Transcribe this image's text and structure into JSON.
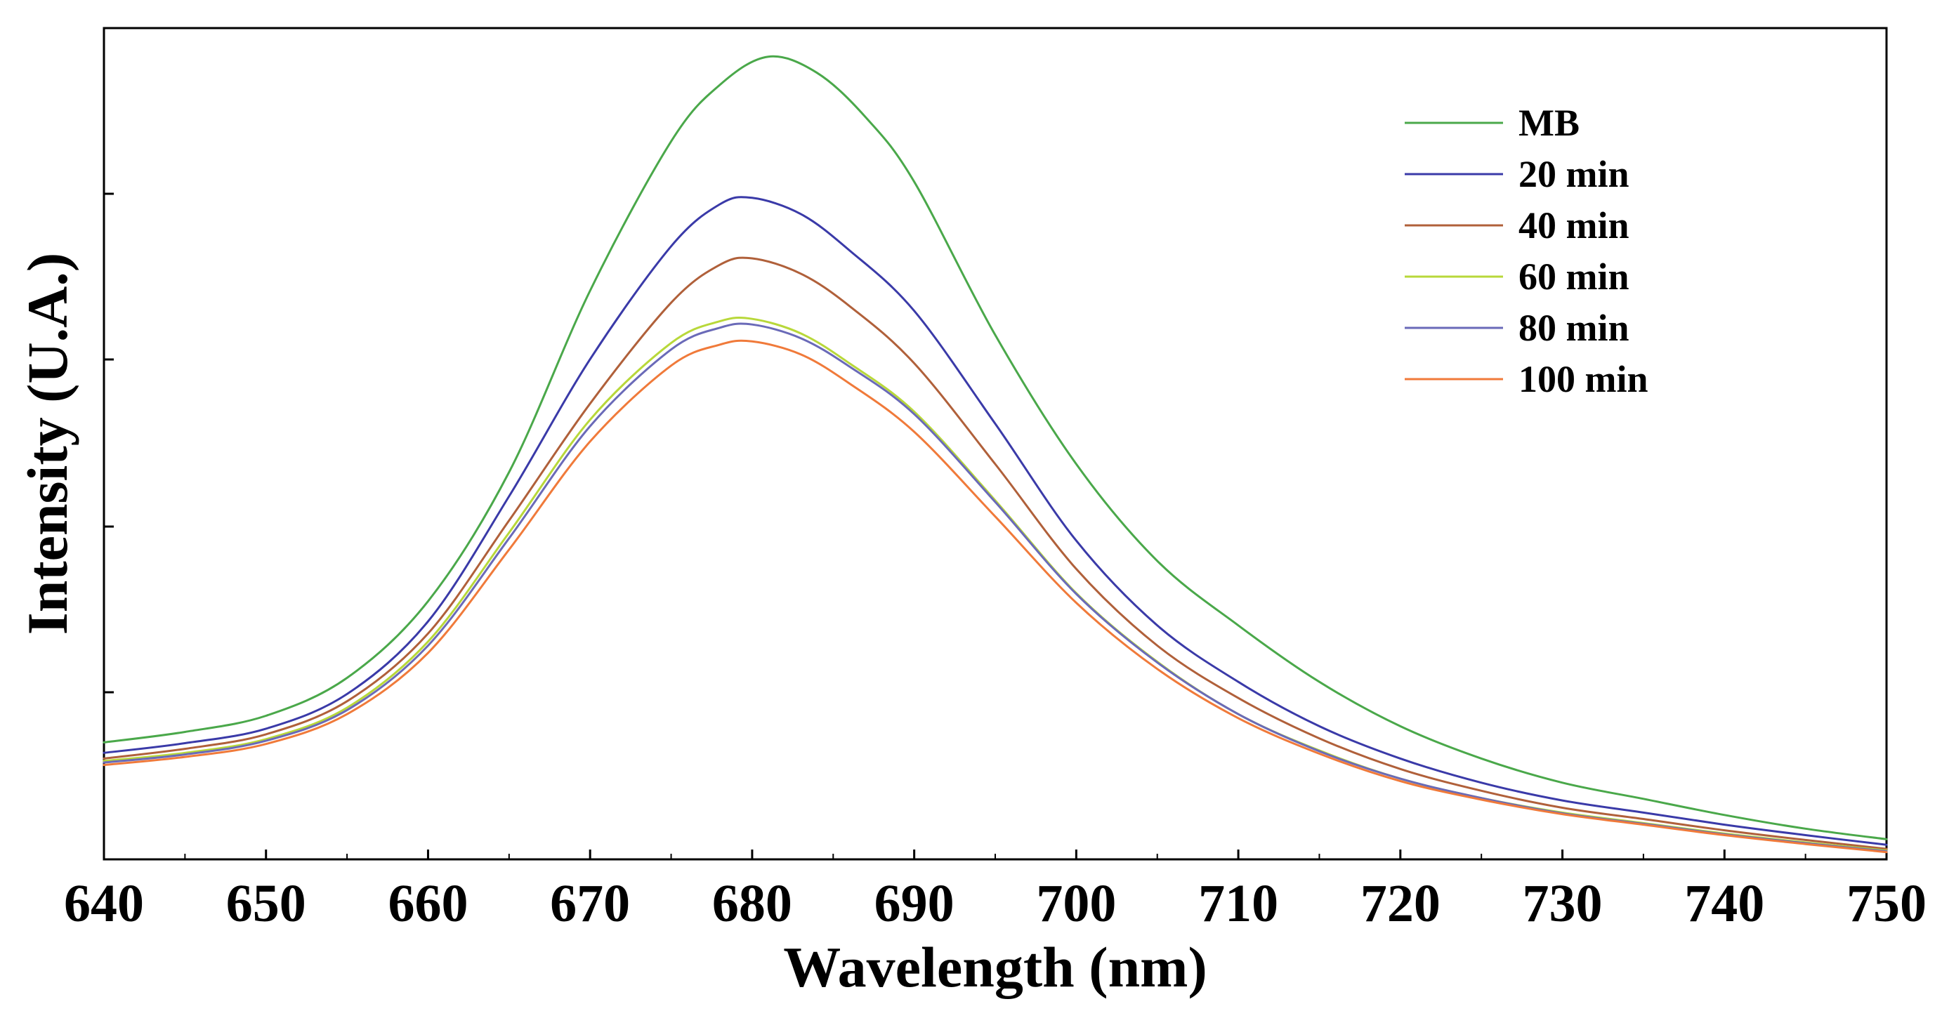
{
  "chart_data": {
    "type": "line",
    "title": "",
    "xlabel": "Wavelength (nm)",
    "ylabel": "Intensity (U.A.)",
    "xlim": [
      640,
      750
    ],
    "ylim": [
      0,
      1.0
    ],
    "x_ticks": [
      "640",
      "650",
      "660",
      "670",
      "680",
      "690",
      "700",
      "710",
      "720",
      "730",
      "740",
      "750"
    ],
    "y_ticks_labeled": false,
    "grid": false,
    "legend_position": "top-right",
    "series": [
      {
        "name": "MB",
        "color": "#4aa84a",
        "x": [
          640,
          645,
          650,
          655,
          660,
          665,
          670,
          675,
          678,
          681,
          684,
          687,
          690,
          695,
          700,
          705,
          710,
          715,
          720,
          725,
          730,
          735,
          740,
          745,
          750
        ],
        "y": [
          0.145,
          0.158,
          0.178,
          0.225,
          0.32,
          0.48,
          0.705,
          0.89,
          0.96,
          0.995,
          0.975,
          0.92,
          0.84,
          0.65,
          0.49,
          0.37,
          0.29,
          0.22,
          0.165,
          0.125,
          0.095,
          0.075,
          0.055,
          0.038,
          0.025
        ]
      },
      {
        "name": "20 min",
        "color": "#3a3aa8",
        "x": [
          640,
          645,
          650,
          655,
          660,
          665,
          670,
          675,
          678,
          680,
          683,
          686,
          690,
          695,
          700,
          705,
          710,
          715,
          720,
          725,
          730,
          735,
          740,
          745,
          750
        ],
        "y": [
          0.132,
          0.144,
          0.162,
          0.205,
          0.295,
          0.45,
          0.62,
          0.76,
          0.812,
          0.82,
          0.8,
          0.755,
          0.68,
          0.54,
          0.395,
          0.29,
          0.22,
          0.165,
          0.125,
          0.095,
          0.073,
          0.058,
          0.043,
          0.03,
          0.018
        ]
      },
      {
        "name": "40 min",
        "color": "#b0603a",
        "x": [
          640,
          645,
          650,
          655,
          660,
          665,
          670,
          675,
          678,
          680,
          683,
          686,
          690,
          695,
          700,
          705,
          710,
          715,
          720,
          725,
          730,
          735,
          740,
          745,
          750
        ],
        "y": [
          0.125,
          0.137,
          0.155,
          0.196,
          0.28,
          0.42,
          0.565,
          0.69,
          0.737,
          0.745,
          0.726,
          0.686,
          0.615,
          0.49,
          0.36,
          0.265,
          0.2,
          0.15,
          0.112,
          0.085,
          0.064,
          0.05,
          0.036,
          0.024,
          0.013
        ]
      },
      {
        "name": "60 min",
        "color": "#b8d83a",
        "x": [
          640,
          645,
          650,
          655,
          660,
          665,
          670,
          675,
          678,
          680,
          683,
          686,
          690,
          695,
          700,
          705,
          710,
          715,
          720,
          725,
          730,
          735,
          740,
          745,
          750
        ],
        "y": [
          0.122,
          0.132,
          0.149,
          0.188,
          0.27,
          0.405,
          0.545,
          0.64,
          0.667,
          0.67,
          0.652,
          0.615,
          0.555,
          0.445,
          0.33,
          0.245,
          0.18,
          0.135,
          0.1,
          0.076,
          0.058,
          0.045,
          0.032,
          0.021,
          0.011
        ]
      },
      {
        "name": "80 min",
        "color": "#6a6ab8",
        "x": [
          640,
          645,
          650,
          655,
          660,
          665,
          670,
          675,
          678,
          680,
          683,
          686,
          690,
          695,
          700,
          705,
          710,
          715,
          720,
          725,
          730,
          735,
          740,
          745,
          750
        ],
        "y": [
          0.12,
          0.13,
          0.147,
          0.185,
          0.265,
          0.398,
          0.537,
          0.632,
          0.659,
          0.663,
          0.646,
          0.611,
          0.552,
          0.443,
          0.329,
          0.244,
          0.18,
          0.134,
          0.1,
          0.076,
          0.057,
          0.044,
          0.031,
          0.02,
          0.01
        ]
      },
      {
        "name": "100 min",
        "color": "#f07a3a",
        "x": [
          640,
          645,
          650,
          655,
          660,
          665,
          670,
          675,
          678,
          680,
          683,
          686,
          690,
          695,
          700,
          705,
          710,
          715,
          720,
          725,
          730,
          735,
          740,
          745,
          750
        ],
        "y": [
          0.117,
          0.127,
          0.143,
          0.18,
          0.256,
          0.384,
          0.518,
          0.612,
          0.638,
          0.642,
          0.626,
          0.59,
          0.53,
          0.425,
          0.318,
          0.236,
          0.175,
          0.131,
          0.097,
          0.074,
          0.056,
          0.043,
          0.03,
          0.019,
          0.009
        ]
      }
    ]
  }
}
